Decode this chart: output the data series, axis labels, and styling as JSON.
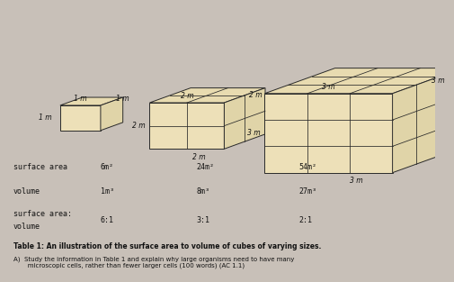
{
  "bg_color": "#c8c0b8",
  "title_text": "Table 1: An illustration of the surface area to volume of cubes of varying sizes.",
  "footer_text": "A)  Study the information in Table 1 and explain why large organisms need to have many\n       microscopic cells, rather than fewer larger cells (100 words) (AC 1.1)",
  "labels": {
    "surface_area": "surface area",
    "volume": "volume",
    "ratio_line1": "surface area:",
    "ratio_line2": "volume"
  },
  "cube1": {
    "side_label": "1 m",
    "top_label": "1 m",
    "depth_label": "1 m",
    "surface_area": "6m²",
    "volume": "1m³",
    "ratio": "6:1"
  },
  "cube2": {
    "side_label": "2 m",
    "top_label": "2 m",
    "depth_label": "2 m",
    "surface_area": "24m²",
    "volume": "8m³",
    "ratio": "3:1"
  },
  "cube3": {
    "side_label": "3 m",
    "top_label": "3 m",
    "depth_label": "3 m",
    "surface_area": "54m²",
    "volume": "27m³",
    "ratio": "2:1"
  },
  "cube_color": "#ede0b8",
  "cube_edge_color": "#2a2a2a",
  "text_color": "#111111",
  "top_face_color": "#e8dbb0",
  "right_face_color": "#e0d4a8"
}
